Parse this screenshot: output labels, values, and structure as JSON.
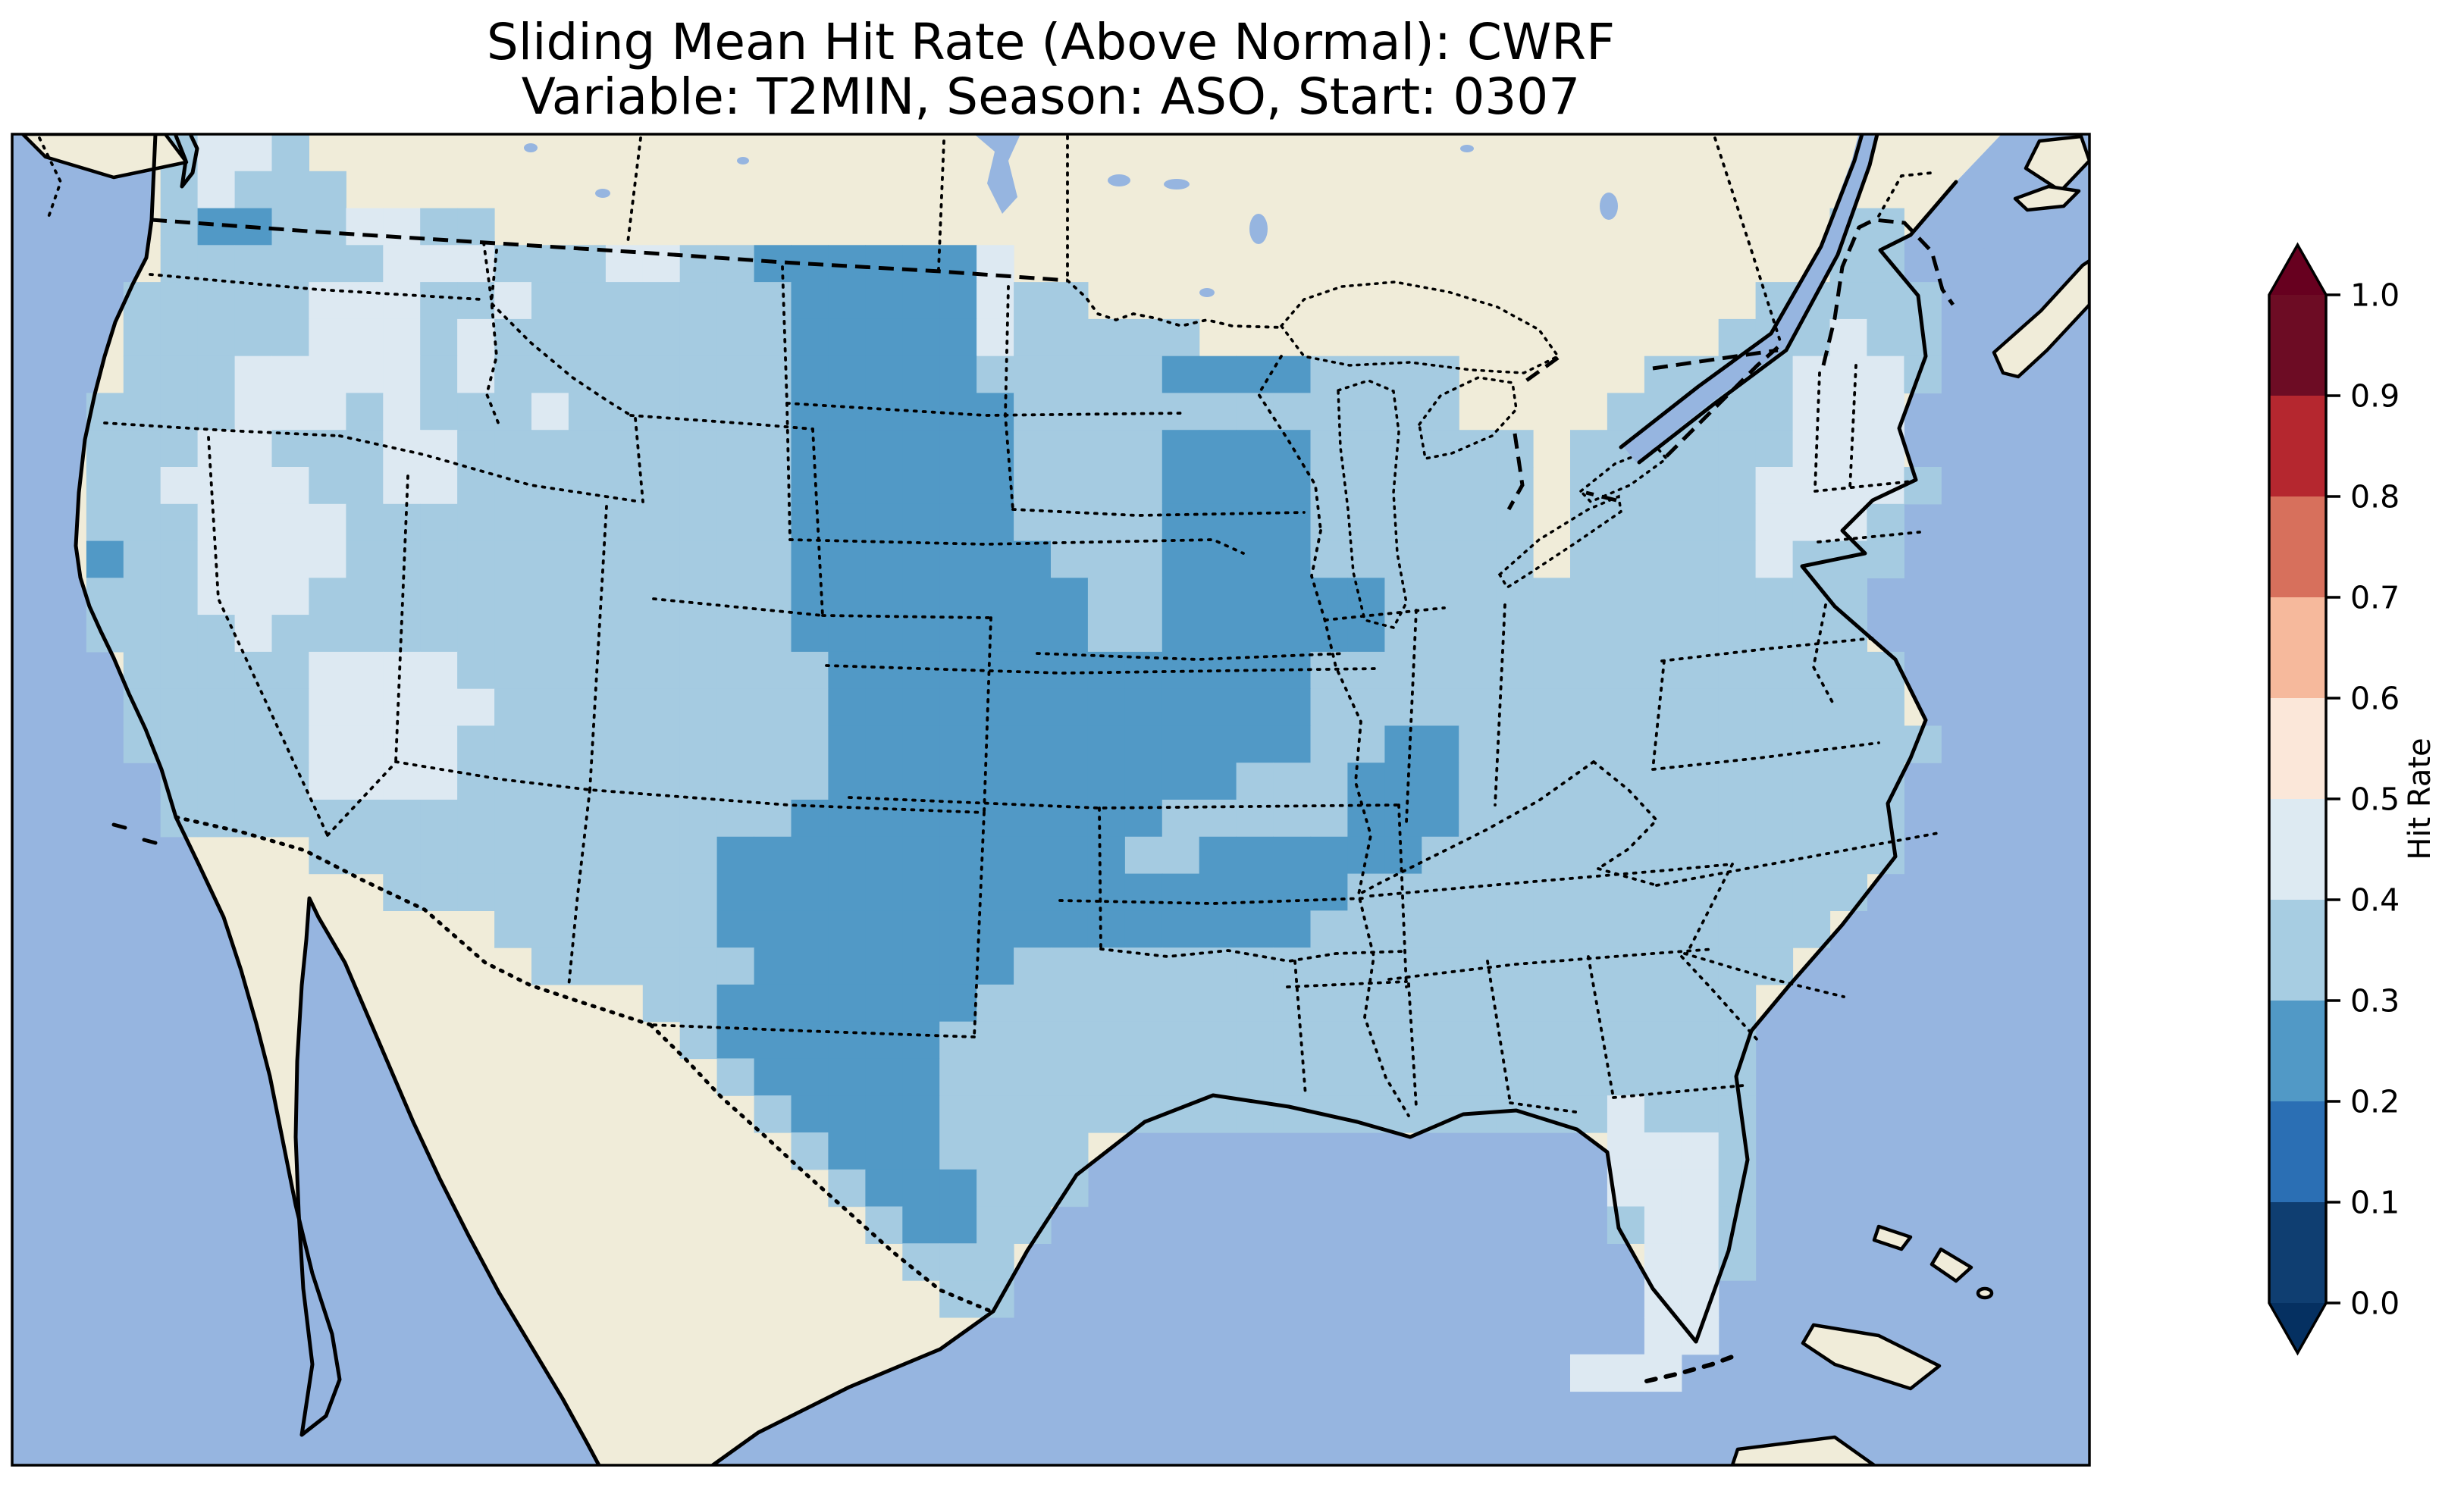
{
  "figure": {
    "title_line1": "Sliding Mean Hit Rate (Above Normal): CWRF",
    "title_line2": "Variable: T2MIN, Season: ASO, Start: 0307"
  },
  "colorbar": {
    "label": "Hit Rate",
    "ticks": [
      "1.0",
      "0.9",
      "0.8",
      "0.7",
      "0.6",
      "0.5",
      "0.4",
      "0.3",
      "0.2",
      "0.1",
      "0.0"
    ],
    "segment_colors_top_to_bottom": [
      "#6d0c24",
      "#b5272f",
      "#d7705c",
      "#f6b99c",
      "#fbe7d9",
      "#ddeaf2",
      "#a7cde2",
      "#5199c6",
      "#2b6fb4",
      "#0f3e71"
    ],
    "over_color": "#67001f",
    "under_color": "#053061"
  },
  "map": {
    "ocean_color": "#96b5e0",
    "land_color": "#f0ecd9",
    "lake_color": "#96b5e0",
    "class_colors": {
      "2": "#5199c6",
      "3": "#a5cbe1",
      "4": "#dde9f2"
    }
  },
  "chart_data": {
    "type": "heatmap",
    "title": "Sliding Mean Hit Rate (Above Normal): CWRF",
    "subtitle": "Variable: T2MIN, Season: ASO, Start: 0307",
    "metric": "Sliding Mean Hit Rate (Above Normal)",
    "model": "CWRF",
    "variable": "T2MIN",
    "season": "ASO",
    "start": "0307",
    "region": "Continental United States (CONUS), with Canada and Mexico masked out",
    "colorbar_label": "Hit Rate",
    "colorbar_ticks": [
      1.0,
      0.9,
      0.8,
      0.7,
      0.6,
      0.5,
      0.4,
      0.3,
      0.2,
      0.1,
      0.0
    ],
    "value_range": [
      0.0,
      1.0
    ],
    "bin_width": 0.1,
    "legend_position": "right",
    "bins": [
      {
        "range": [
          0.9,
          1.0
        ],
        "color": "#6d0c24"
      },
      {
        "range": [
          0.8,
          0.9
        ],
        "color": "#b5272f"
      },
      {
        "range": [
          0.7,
          0.8
        ],
        "color": "#d7705c"
      },
      {
        "range": [
          0.6,
          0.7
        ],
        "color": "#f6b99c"
      },
      {
        "range": [
          0.5,
          0.6
        ],
        "color": "#fbe7d9"
      },
      {
        "range": [
          0.4,
          0.5
        ],
        "color": "#ddeaf2"
      },
      {
        "range": [
          0.3,
          0.4
        ],
        "color": "#a7cde2"
      },
      {
        "range": [
          0.2,
          0.3
        ],
        "color": "#5199c6"
      },
      {
        "range": [
          0.1,
          0.2
        ],
        "color": "#2b6fb4"
      },
      {
        "range": [
          0.0,
          0.1
        ],
        "color": "#0f3e71"
      }
    ],
    "observed_value_classes": {
      "2": "hit rate 0.2-0.3 (medium blue: Dakotas, Nebraska, Kansas, Oklahoma, Texas panhandle, Iowa, Wisconsin, Tennessee valley band)",
      "3": "hit rate 0.3-0.4 (light blue: most of CONUS)",
      "4": "hit rate 0.4-0.5 (very pale blue: Idaho, Nevada, Utah patches, New England, Florida peninsula)"
    },
    "grid": {
      "cols": 56,
      "rows": 36,
      "legend": {
        ".": "no data (outside USA)",
        "2": "0.2-0.3",
        "3": "0.3-0.4",
        "4": "0.4-0.5"
      },
      "cells": [
        "....3443................................................",
        "....34333...............................................",
        "....322334433....................................33.....",
        "....33333344433344332222224......................33.....",
        "...33333444334333333322222433..................33333....",
        "...33333444343333333322222433333..............333433....",
        "...333444443433333333222223333322223333.....33334443....",
        "..3333444343334333333222222333333333333....33333444.....",
        "..333443334433333333322222233332222333333.333333444.....",
        "..334444334433333333322222233332222333333.3333344443....",
        "..333444433333333333322222233332222333333.333334443.....",
        "..233444433333333333322222223332222333333.333334333.....",
        "..333444333333333333322222222332222223333333333333......",
        "..333343333333333333322222222332222223333333333333......",
        "...333334444333333333322222222222223333333333333333.....",
        "...333334444433333333322222222222223333333333333333.....",
        "...3333344443333333333222222222222233223333333333333....",
        "....33334444333333333322222222222333222333333333333.....",
        "....33333333333333333222222222233333222333333333333.....",
        "........3333333333322222222222332222223333333333333.....",
        "..........3333333332222222222222222233333333333333......",
        ".............333333222222222222222233333333333333.......",
        "..............3333332222222333333333333333333333........",
        ".................332222222333333333333333333333.........",
        "..................32222223333333333333333333333.........",
        "...................3222223333333333333333333333.........",
        "....................322223333333333333333334333.........",
        ".....................32223333..............4443.........",
        "......................3222333..............4443.........",
        ".......................32233...............3443.........",
        "........................333.................443.........",
        ".........................33.................44..........",
        "............................................44..........",
        "..........................................444...........",
        "........................................................",
        "........................................................"
      ]
    }
  }
}
